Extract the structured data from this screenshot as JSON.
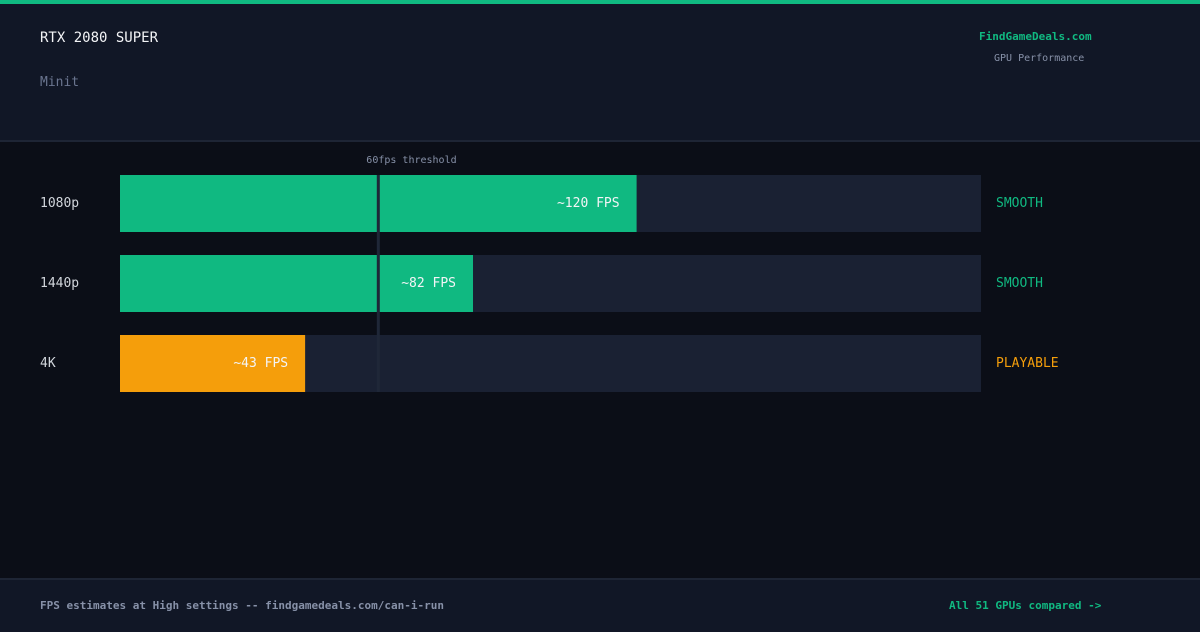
{
  "header": {
    "title": "RTX 2080 SUPER",
    "subtitle": "Minit",
    "brand": "FindGameDeals.com",
    "brand_caption": "GPU Performance"
  },
  "chart_data": {
    "type": "bar",
    "orientation": "horizontal",
    "categories": [
      "1080p",
      "1440p",
      "4K"
    ],
    "values": [
      120,
      82,
      43
    ],
    "value_labels": [
      "~120 FPS",
      "~82 FPS",
      "~43 FPS"
    ],
    "colors": [
      "#10b981",
      "#10b981",
      "#f59e0b"
    ],
    "statuses": [
      "SMOOTH",
      "SMOOTH",
      "PLAYABLE"
    ],
    "xlim": [
      0,
      200
    ],
    "threshold": 60,
    "threshold_label": "60fps threshold"
  },
  "footer": {
    "note": "FPS estimates at High settings -- findgamedeals.com/can-i-run",
    "link": "All 51 GPUs compared ->"
  }
}
